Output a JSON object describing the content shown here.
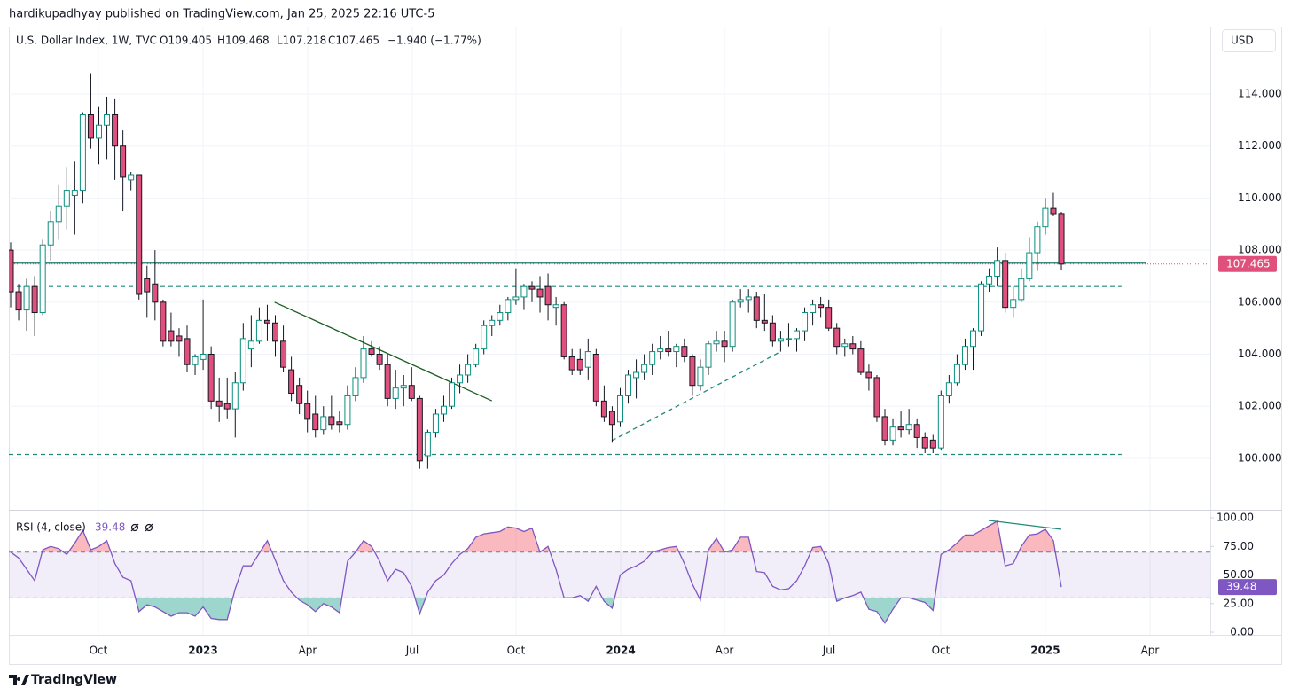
{
  "header": "hardikupadhyay published on TradingView.com, Jan 25, 2025 22:16 UTC-5",
  "footer": "TradingView",
  "chart_data": {
    "type": "candlestick",
    "legend": {
      "symbol": "U.S. Dollar Index, 1W, TVC",
      "open": "O109.405",
      "high": "H109.468",
      "low": "L107.218",
      "close": "C107.465",
      "change": "−1.940 (−1.77%)"
    },
    "currency": "USD",
    "last_label": "107.465",
    "up_color": "#0b8f7f",
    "down_color": "#e0507c",
    "grid": true,
    "ylim": [
      98.02,
      116.59
    ],
    "yticks": [
      {
        "value": 100,
        "label": "100.000"
      },
      {
        "value": 102,
        "label": "102.000"
      },
      {
        "value": 104,
        "label": "104.000"
      },
      {
        "value": 106,
        "label": "106.000"
      },
      {
        "value": 108,
        "label": "108.000"
      },
      {
        "value": 110,
        "label": "110.000"
      },
      {
        "value": 112,
        "label": "112.000"
      },
      {
        "value": 114,
        "label": "114.000"
      }
    ],
    "xlim": [
      -0.22,
      149.57
    ],
    "xticks": [
      {
        "value": 10.94,
        "label": "Oct"
      },
      {
        "value": 23.99,
        "label": "2023"
      },
      {
        "value": 37.03,
        "label": "Apr"
      },
      {
        "value": 50.08,
        "label": "Jul"
      },
      {
        "value": 63.01,
        "label": "Oct"
      },
      {
        "value": 76.06,
        "label": "2024"
      },
      {
        "value": 88.99,
        "label": "Apr"
      },
      {
        "value": 102.03,
        "label": "Jul"
      },
      {
        "value": 115.96,
        "label": "Oct"
      },
      {
        "value": 129.0,
        "label": "2025"
      },
      {
        "value": 142.05,
        "label": "Apr"
      }
    ],
    "hlines": [
      {
        "value": 107.5,
        "dash": false,
        "color": "#1f7a6e",
        "end": 141.5
      },
      {
        "value": 106.6,
        "dash": true,
        "color": "#1f8a7a",
        "end": 138.5
      },
      {
        "value": 100.15,
        "dash": true,
        "color": "#1f8a7a",
        "end": 138.5
      }
    ],
    "trendlines": [
      {
        "x": [
          32.9,
          60.0
        ],
        "y": [
          106.0,
          102.21
        ],
        "dash": false,
        "color": "#1b5e20"
      },
      {
        "x": [
          74.95,
          95.95
        ],
        "y": [
          100.68,
          104.09
        ],
        "dash": true,
        "color": "#1f8a7a"
      }
    ],
    "ohlc": [
      [
        108.0,
        108.3,
        105.8,
        106.4
      ],
      [
        106.4,
        106.7,
        105.3,
        105.7
      ],
      [
        105.7,
        106.9,
        104.9,
        106.6
      ],
      [
        106.6,
        107.0,
        104.7,
        105.6
      ],
      [
        105.6,
        108.4,
        105.5,
        108.2
      ],
      [
        108.2,
        109.5,
        107.6,
        109.1
      ],
      [
        109.1,
        110.5,
        108.4,
        109.7
      ],
      [
        109.7,
        111.2,
        108.8,
        110.3
      ],
      [
        110.1,
        111.4,
        108.6,
        110.3
      ],
      [
        110.3,
        113.3,
        109.8,
        113.2
      ],
      [
        113.2,
        114.8,
        111.9,
        112.3
      ],
      [
        112.3,
        113.5,
        111.3,
        112.8
      ],
      [
        112.8,
        113.9,
        111.5,
        113.2
      ],
      [
        113.2,
        113.8,
        110.7,
        112.0
      ],
      [
        112.0,
        112.6,
        109.5,
        110.8
      ],
      [
        110.7,
        111.0,
        110.3,
        110.9
      ],
      [
        110.9,
        110.9,
        106.1,
        106.3
      ],
      [
        106.9,
        107.4,
        105.4,
        106.4
      ],
      [
        106.7,
        108.0,
        105.3,
        106.0
      ],
      [
        106.0,
        106.1,
        104.3,
        104.5
      ],
      [
        104.9,
        105.6,
        104.3,
        104.5
      ],
      [
        104.7,
        105.0,
        103.9,
        104.5
      ],
      [
        104.6,
        105.1,
        103.3,
        103.6
      ],
      [
        103.6,
        104.0,
        103.2,
        103.9
      ],
      [
        103.8,
        106.1,
        103.4,
        104.0
      ],
      [
        104.0,
        104.3,
        101.9,
        102.2
      ],
      [
        102.2,
        103.1,
        101.4,
        102.0
      ],
      [
        102.1,
        103.1,
        101.5,
        101.9
      ],
      [
        101.9,
        103.3,
        100.8,
        102.9
      ],
      [
        102.9,
        105.2,
        102.6,
        104.6
      ],
      [
        104.2,
        105.5,
        103.5,
        104.5
      ],
      [
        104.5,
        105.8,
        104.4,
        105.3
      ],
      [
        105.3,
        105.9,
        104.5,
        105.2
      ],
      [
        105.2,
        105.5,
        103.9,
        104.5
      ],
      [
        104.5,
        105.1,
        103.3,
        103.5
      ],
      [
        103.4,
        103.9,
        102.2,
        102.5
      ],
      [
        102.8,
        103.1,
        101.7,
        102.1
      ],
      [
        102.1,
        102.6,
        101.0,
        101.5
      ],
      [
        101.7,
        102.4,
        100.8,
        101.1
      ],
      [
        101.1,
        102.0,
        100.9,
        101.6
      ],
      [
        101.6,
        102.4,
        101.1,
        101.3
      ],
      [
        101.4,
        101.8,
        101.0,
        101.3
      ],
      [
        101.3,
        102.8,
        101.1,
        102.4
      ],
      [
        102.4,
        103.5,
        102.2,
        103.1
      ],
      [
        103.1,
        104.7,
        102.9,
        104.2
      ],
      [
        104.2,
        104.5,
        103.9,
        104.0
      ],
      [
        104.0,
        104.3,
        103.4,
        103.6
      ],
      [
        103.6,
        104.0,
        102.0,
        102.3
      ],
      [
        102.3,
        103.4,
        101.9,
        102.7
      ],
      [
        102.7,
        103.2,
        102.0,
        102.8
      ],
      [
        102.8,
        103.5,
        102.2,
        102.3
      ],
      [
        102.3,
        102.4,
        99.6,
        99.9
      ],
      [
        100.1,
        101.1,
        99.6,
        101.0
      ],
      [
        101.0,
        101.9,
        100.8,
        101.7
      ],
      [
        101.7,
        102.4,
        101.4,
        102.0
      ],
      [
        102.0,
        103.1,
        101.9,
        102.9
      ],
      [
        102.9,
        103.6,
        102.5,
        103.2
      ],
      [
        103.2,
        104.0,
        102.9,
        103.6
      ],
      [
        103.6,
        104.4,
        103.5,
        104.2
      ],
      [
        104.2,
        105.3,
        104.0,
        105.1
      ],
      [
        105.1,
        105.5,
        104.7,
        105.3
      ],
      [
        105.3,
        105.9,
        105.1,
        105.6
      ],
      [
        105.6,
        106.2,
        105.3,
        106.1
      ],
      [
        106.1,
        107.3,
        105.9,
        106.2
      ],
      [
        106.2,
        106.7,
        105.7,
        106.6
      ],
      [
        106.6,
        106.8,
        106.0,
        106.5
      ],
      [
        106.5,
        107.0,
        105.6,
        106.2
      ],
      [
        106.6,
        107.1,
        105.3,
        105.9
      ],
      [
        105.8,
        106.2,
        105.1,
        105.9
      ],
      [
        105.9,
        106.0,
        103.8,
        103.9
      ],
      [
        103.9,
        104.2,
        103.2,
        103.4
      ],
      [
        103.8,
        104.2,
        103.2,
        103.4
      ],
      [
        103.5,
        104.6,
        103.0,
        104.1
      ],
      [
        104.0,
        104.2,
        102.0,
        102.2
      ],
      [
        102.2,
        102.8,
        101.4,
        101.6
      ],
      [
        101.8,
        102.0,
        100.6,
        101.3
      ],
      [
        101.4,
        102.7,
        101.2,
        102.4
      ],
      [
        102.4,
        103.4,
        102.1,
        103.2
      ],
      [
        103.1,
        103.8,
        102.3,
        103.3
      ],
      [
        103.3,
        104.0,
        103.0,
        103.6
      ],
      [
        103.6,
        104.4,
        103.2,
        104.1
      ],
      [
        104.1,
        104.7,
        103.8,
        104.2
      ],
      [
        104.2,
        104.9,
        103.9,
        104.1
      ],
      [
        104.1,
        104.4,
        103.5,
        104.3
      ],
      [
        104.3,
        104.6,
        103.7,
        103.9
      ],
      [
        103.9,
        104.0,
        102.4,
        102.8
      ],
      [
        102.8,
        103.8,
        102.6,
        103.5
      ],
      [
        103.5,
        104.5,
        103.2,
        104.4
      ],
      [
        104.4,
        104.9,
        104.1,
        104.5
      ],
      [
        104.5,
        104.9,
        103.7,
        104.3
      ],
      [
        104.3,
        106.1,
        104.1,
        106.0
      ],
      [
        106.0,
        106.5,
        105.8,
        106.1
      ],
      [
        106.1,
        106.5,
        105.6,
        106.2
      ],
      [
        106.2,
        106.4,
        105.0,
        105.3
      ],
      [
        105.3,
        106.3,
        104.9,
        105.2
      ],
      [
        105.2,
        105.5,
        104.3,
        104.5
      ],
      [
        104.5,
        104.9,
        104.1,
        104.6
      ],
      [
        104.6,
        105.2,
        104.3,
        104.6
      ],
      [
        104.6,
        105.0,
        104.1,
        104.9
      ],
      [
        104.9,
        105.8,
        104.5,
        105.6
      ],
      [
        105.6,
        106.1,
        105.1,
        105.9
      ],
      [
        105.9,
        106.2,
        105.4,
        105.8
      ],
      [
        105.8,
        106.1,
        104.9,
        105.0
      ],
      [
        105.0,
        105.2,
        104.0,
        104.3
      ],
      [
        104.3,
        104.6,
        103.9,
        104.4
      ],
      [
        104.4,
        104.7,
        104.0,
        104.2
      ],
      [
        104.2,
        104.5,
        103.2,
        103.3
      ],
      [
        103.3,
        103.6,
        102.6,
        103.1
      ],
      [
        103.1,
        103.2,
        101.4,
        101.6
      ],
      [
        101.6,
        101.9,
        100.5,
        100.7
      ],
      [
        100.7,
        101.5,
        100.5,
        101.2
      ],
      [
        101.2,
        101.8,
        100.8,
        101.1
      ],
      [
        101.1,
        101.9,
        100.9,
        101.3
      ],
      [
        101.3,
        101.5,
        100.4,
        100.8
      ],
      [
        100.8,
        101.0,
        100.2,
        100.4
      ],
      [
        100.7,
        100.9,
        100.2,
        100.4
      ],
      [
        100.4,
        102.6,
        100.3,
        102.4
      ],
      [
        102.4,
        103.2,
        102.1,
        102.9
      ],
      [
        102.9,
        104.0,
        102.8,
        103.6
      ],
      [
        103.6,
        104.6,
        103.4,
        104.3
      ],
      [
        104.3,
        105.0,
        103.4,
        104.9
      ],
      [
        104.9,
        106.8,
        104.7,
        106.7
      ],
      [
        106.7,
        107.3,
        106.4,
        107.0
      ],
      [
        107.0,
        108.1,
        106.6,
        107.6
      ],
      [
        107.6,
        107.9,
        105.6,
        105.8
      ],
      [
        105.8,
        106.6,
        105.4,
        106.1
      ],
      [
        106.1,
        107.3,
        106.0,
        106.9
      ],
      [
        106.9,
        108.5,
        106.8,
        107.9
      ],
      [
        107.9,
        109.1,
        107.2,
        108.9
      ],
      [
        108.9,
        110.0,
        108.6,
        109.6
      ],
      [
        109.6,
        110.2,
        109.3,
        109.4
      ],
      [
        109.405,
        109.468,
        107.218,
        107.465
      ]
    ],
    "rsi": {
      "title": "RSI (4, close)",
      "value_label": "39.48",
      "color": "#7e57c2",
      "ylim": [
        -2.3,
        106.2
      ],
      "yticks": [
        {
          "value": 0,
          "label": "0.00"
        },
        {
          "value": 25,
          "label": "25.00"
        },
        {
          "value": 50,
          "label": "50.00"
        },
        {
          "value": 75,
          "label": "75.00"
        },
        {
          "value": 100,
          "label": "100.00"
        }
      ],
      "levels": [
        70,
        50,
        30
      ],
      "trendline": {
        "x": [
          121.93,
          131.0
        ],
        "y": [
          97.7,
          89.9
        ],
        "color": "#1f8a7a"
      },
      "values": [
        70,
        65,
        55,
        45,
        72,
        75,
        73,
        68,
        78,
        89,
        72,
        75,
        80,
        60,
        48,
        45,
        18,
        24,
        22,
        18,
        14,
        17,
        17,
        14,
        22,
        12,
        11,
        11,
        38,
        58,
        58,
        69,
        80,
        63,
        45,
        35,
        28,
        24,
        18,
        25,
        22,
        17,
        62,
        70,
        80,
        75,
        62,
        45,
        55,
        52,
        40,
        16,
        35,
        45,
        50,
        60,
        68,
        73,
        83,
        86,
        87,
        88,
        92,
        91,
        88,
        91,
        70,
        75,
        55,
        30,
        30,
        32,
        27,
        40,
        27,
        21,
        50,
        55,
        58,
        62,
        70,
        72,
        74,
        75,
        60,
        42,
        28,
        72,
        82,
        70,
        72,
        83,
        83,
        53,
        52,
        40,
        37,
        38,
        45,
        58,
        74,
        75,
        60,
        27,
        30,
        32,
        35,
        20,
        18,
        8,
        20,
        30,
        30,
        28,
        26,
        19,
        68,
        72,
        78,
        85,
        85,
        89,
        93,
        97,
        58,
        60,
        75,
        85,
        86,
        90,
        80,
        39.48
      ]
    }
  }
}
